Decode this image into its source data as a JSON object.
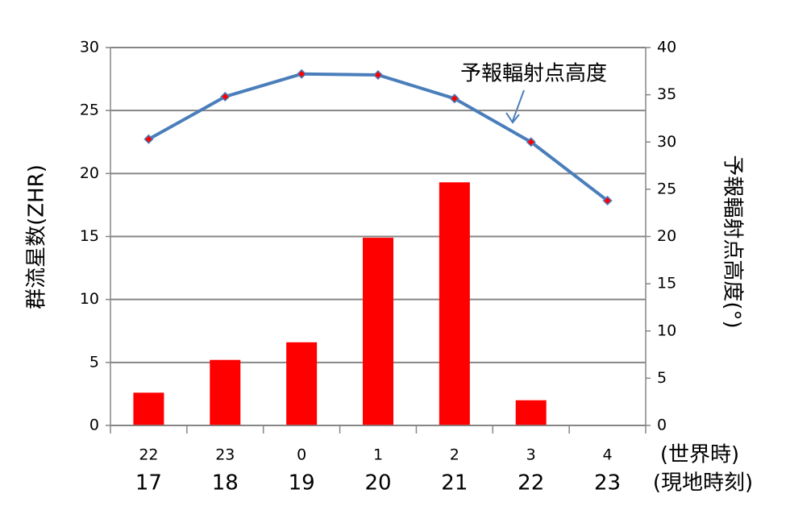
{
  "chart_data": {
    "type": "bar_line",
    "categories": [
      "22",
      "23",
      "0",
      "1",
      "2",
      "3",
      "4"
    ],
    "categories_local": [
      "17",
      "18",
      "19",
      "20",
      "21",
      "22",
      "23"
    ],
    "x_row_labels": [
      "(世界時)",
      "(現地時刻)"
    ],
    "ylabel": "群流星数(ZHR)",
    "y2label": "予報輻射点高度(°)",
    "annotation": "予報輻射点高度",
    "series": [
      {
        "type": "bar",
        "color": "#ff0000",
        "values": [
          2.6,
          5.2,
          6.6,
          14.9,
          19.3,
          2.0,
          null
        ]
      },
      {
        "type": "line",
        "axis": "y2",
        "color": "#4a7ebb",
        "marker_color": "#ff0000",
        "values": [
          30.3,
          34.8,
          37.2,
          37.1,
          34.6,
          30.0,
          23.8
        ]
      }
    ],
    "ylim": [
      0,
      30
    ],
    "yticks": [
      0,
      5,
      10,
      15,
      20,
      25,
      30
    ],
    "y2lim": [
      0,
      40
    ],
    "y2ticks": [
      0,
      5,
      10,
      15,
      20,
      25,
      30,
      35,
      40
    ],
    "grid": true
  }
}
